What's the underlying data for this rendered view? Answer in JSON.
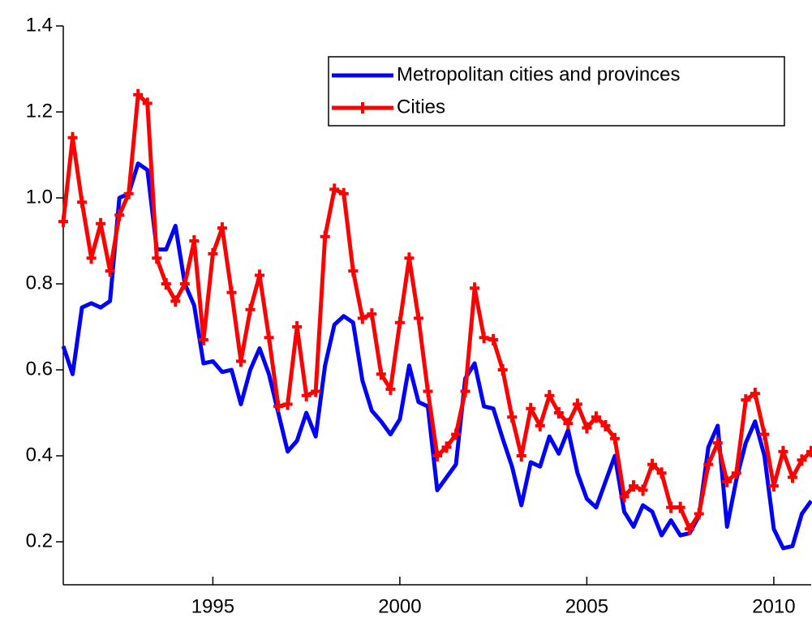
{
  "chart_data": {
    "type": "line",
    "x": [
      1991,
      1991.25,
      1991.5,
      1991.75,
      1992,
      1992.25,
      1992.5,
      1992.75,
      1993,
      1993.25,
      1993.5,
      1993.75,
      1994,
      1994.25,
      1994.5,
      1994.75,
      1995,
      1995.25,
      1995.5,
      1995.75,
      1996,
      1996.25,
      1996.5,
      1996.75,
      1997,
      1997.25,
      1997.5,
      1997.75,
      1998,
      1998.25,
      1998.5,
      1998.75,
      1999,
      1999.25,
      1999.5,
      1999.75,
      2000,
      2000.25,
      2000.5,
      2000.75,
      2001,
      2001.25,
      2001.5,
      2001.75,
      2002,
      2002.25,
      2002.5,
      2002.75,
      2003,
      2003.25,
      2003.5,
      2003.75,
      2004,
      2004.25,
      2004.5,
      2004.75,
      2005,
      2005.25,
      2005.5,
      2005.75,
      2006,
      2006.25,
      2006.5,
      2006.75,
      2007,
      2007.25,
      2007.5,
      2007.75,
      2008,
      2008.25,
      2008.5,
      2008.75,
      2009,
      2009.25,
      2009.5,
      2009.75,
      2010,
      2010.25,
      2010.5,
      2010.75,
      2011
    ],
    "series": [
      {
        "name": "Metropolitan cities and provinces",
        "color": "#0000ff",
        "marker": false,
        "values": [
          0.655,
          0.59,
          0.745,
          0.755,
          0.745,
          0.76,
          1.0,
          1.01,
          1.08,
          1.065,
          0.88,
          0.88,
          0.935,
          0.8,
          0.75,
          0.615,
          0.62,
          0.595,
          0.6,
          0.52,
          0.6,
          0.65,
          0.59,
          0.5,
          0.41,
          0.435,
          0.5,
          0.445,
          0.61,
          0.705,
          0.725,
          0.71,
          0.575,
          0.505,
          0.48,
          0.45,
          0.485,
          0.61,
          0.525,
          0.515,
          0.32,
          0.35,
          0.38,
          0.58,
          0.615,
          0.515,
          0.51,
          0.44,
          0.375,
          0.285,
          0.385,
          0.375,
          0.445,
          0.405,
          0.46,
          0.36,
          0.3,
          0.28,
          0.34,
          0.4,
          0.27,
          0.235,
          0.285,
          0.27,
          0.215,
          0.25,
          0.215,
          0.22,
          0.26,
          0.42,
          0.47,
          0.235,
          0.345,
          0.43,
          0.48,
          0.4,
          0.23,
          0.185,
          0.19,
          0.265,
          0.295
        ]
      },
      {
        "name": "Cities",
        "color": "#ff0000",
        "marker": true,
        "values": [
          0.945,
          1.14,
          0.99,
          0.86,
          0.94,
          0.83,
          0.96,
          1.01,
          1.24,
          1.22,
          0.86,
          0.8,
          0.76,
          0.8,
          0.9,
          0.67,
          0.87,
          0.93,
          0.78,
          0.62,
          0.74,
          0.82,
          0.675,
          0.515,
          0.52,
          0.7,
          0.54,
          0.55,
          0.91,
          1.02,
          1.01,
          0.83,
          0.72,
          0.73,
          0.59,
          0.555,
          0.71,
          0.86,
          0.72,
          0.55,
          0.4,
          0.42,
          0.45,
          0.55,
          0.79,
          0.675,
          0.67,
          0.6,
          0.49,
          0.4,
          0.51,
          0.47,
          0.54,
          0.5,
          0.475,
          0.52,
          0.465,
          0.49,
          0.47,
          0.44,
          0.305,
          0.33,
          0.32,
          0.38,
          0.36,
          0.28,
          0.28,
          0.23,
          0.265,
          0.38,
          0.43,
          0.34,
          0.36,
          0.53,
          0.545,
          0.45,
          0.33,
          0.41,
          0.35,
          0.39,
          0.41
        ]
      }
    ],
    "xlim": [
      1991,
      2011
    ],
    "xticks": [
      1995,
      2000,
      2005,
      2010
    ],
    "ylim": [
      0.1,
      1.4
    ],
    "yticks": [
      0.2,
      0.4,
      0.6,
      0.8,
      {
        "value": 1,
        "label": "1.0"
      },
      1.2,
      1.4
    ],
    "legend": "top-right"
  }
}
